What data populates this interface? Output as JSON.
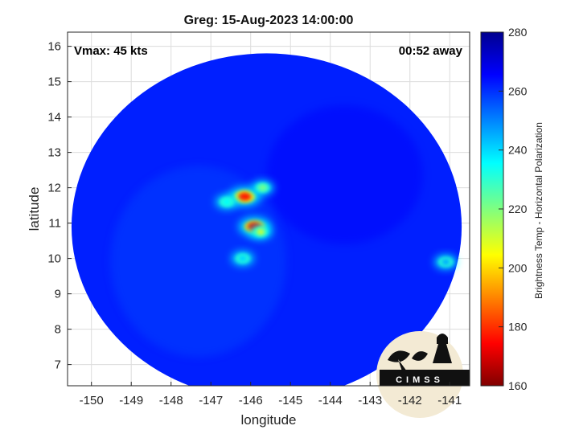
{
  "chart_data": {
    "type": "heatmap",
    "title": "Greg: 15-Aug-2023 14:00:00",
    "xlabel": "longitude",
    "ylabel": "latitude",
    "xlim": [
      -150.6,
      -140.5
    ],
    "ylim": [
      6.4,
      16.4
    ],
    "x_ticks": [
      -150,
      -149,
      -148,
      -147,
      -146,
      -145,
      -144,
      -143,
      -142,
      -141
    ],
    "x_tick_labels": [
      "-150",
      "-149",
      "-148",
      "-147",
      "-146",
      "-145",
      "-144",
      "-143",
      "-142",
      "-141"
    ],
    "y_ticks": [
      7,
      8,
      9,
      10,
      11,
      12,
      13,
      14,
      15,
      16
    ],
    "y_tick_labels": [
      "7",
      "8",
      "9",
      "10",
      "11",
      "12",
      "13",
      "14",
      "15",
      "16"
    ],
    "grid": true,
    "annotations": {
      "vmax": "Vmax: 45 kts",
      "away": "00:52 away"
    },
    "colorbar": {
      "label": "Brightness Temp - Horizontal Polarization",
      "min": 160,
      "max": 280,
      "ticks": [
        160,
        180,
        200,
        220,
        240,
        260,
        280
      ],
      "tick_labels": [
        "160",
        "180",
        "200",
        "220",
        "240",
        "260",
        "280"
      ],
      "colormap": "jet"
    },
    "swath": {
      "center": [
        -145.6,
        10.9
      ],
      "radius_lon": 4.9,
      "radius_lat": 4.9,
      "background_value": 262
    },
    "features": [
      {
        "name": "northern cold core",
        "lon": -146.15,
        "lat": 11.75,
        "value": 178
      },
      {
        "name": "northeast cell",
        "lon": -145.7,
        "lat": 12.0,
        "value": 222
      },
      {
        "name": "southern cold core",
        "lon": -145.9,
        "lat": 10.9,
        "value": 172
      },
      {
        "name": "southern band",
        "lon": -145.75,
        "lat": 10.75,
        "value": 212
      },
      {
        "name": "western band",
        "lon": -146.6,
        "lat": 11.6,
        "value": 235
      },
      {
        "name": "southwest cell",
        "lon": -146.2,
        "lat": 10.0,
        "value": 240
      },
      {
        "name": "east cell",
        "lon": -141.1,
        "lat": 9.9,
        "value": 245
      }
    ]
  },
  "logo": {
    "text": "CIMSS",
    "colors": {
      "disc": "#f3ead4",
      "ground": "#111111"
    }
  }
}
